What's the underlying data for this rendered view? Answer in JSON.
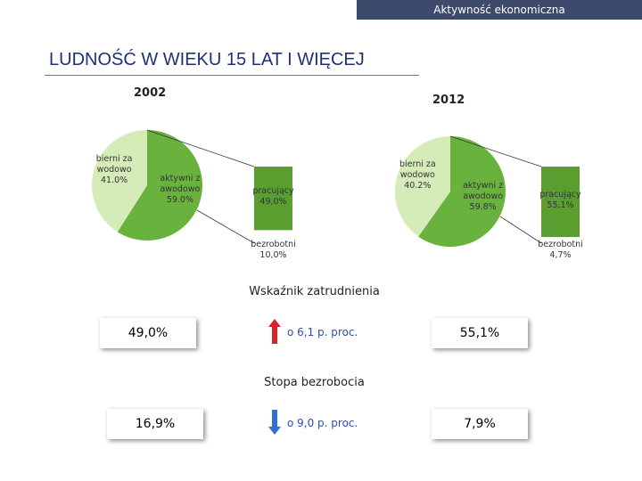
{
  "header": "Aktywność ekonomiczna",
  "title": "LUDNOŚĆ W WIEKU 15 LAT I WIĘCEJ",
  "chart_data": [
    {
      "type": "pie",
      "title": "2002",
      "categories": [
        "bierni zawodowo",
        "aktywni zawodowo"
      ],
      "values": [
        41.0,
        59.0
      ],
      "value_labels": [
        "41.0%",
        "59.0%"
      ],
      "colors": [
        "#d6ecb8",
        "#6ab23e"
      ],
      "breakdown": {
        "categories": [
          "pracujący",
          "bezrobotni"
        ],
        "values": [
          49.0,
          10.0
        ],
        "value_labels": [
          "49,0%",
          "10,0%"
        ],
        "colors": [
          "#5a9e2f",
          "#ffffff"
        ]
      }
    },
    {
      "type": "pie",
      "title": "2012",
      "categories": [
        "bierni zawodowo",
        "aktywni zawodowo"
      ],
      "values": [
        40.2,
        59.8
      ],
      "value_labels": [
        "40.2%",
        "59.8%"
      ],
      "colors": [
        "#d6ecb8",
        "#6ab23e"
      ],
      "breakdown": {
        "categories": [
          "pracujący",
          "bezrobotni"
        ],
        "values": [
          55.1,
          4.7
        ],
        "value_labels": [
          "55,1%",
          "4,7%"
        ],
        "colors": [
          "#5a9e2f",
          "#ffffff"
        ]
      }
    }
  ],
  "indicators": [
    {
      "label": "Wskaźnik zatrudnienia",
      "before": "49,0%",
      "change": "o 6,1 p. proc.",
      "after": "55,1%",
      "direction": "up",
      "color": "#d9222a"
    },
    {
      "label": "Stopa bezrobocia",
      "before": "16,9%",
      "change": "o 9,0 p. proc.",
      "after": "7,9%",
      "direction": "down",
      "color": "#2f6fd1"
    }
  ]
}
